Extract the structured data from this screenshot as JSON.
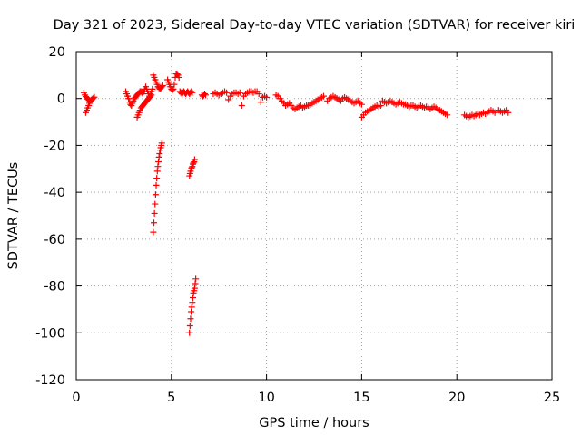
{
  "chart_data": {
    "type": "scatter",
    "title": "Day 321 of 2023, Sidereal Day-to-day VTEC variation (SDTVAR) for receiver kiri",
    "xlabel": "GPS time / hours",
    "ylabel": "SDTVAR / TECUs",
    "xlim": [
      0,
      25
    ],
    "ylim": [
      -120,
      20
    ],
    "xticks": [
      "0",
      "5",
      "10",
      "15",
      "20",
      "25"
    ],
    "yticks": [
      "20",
      "0",
      "-20",
      "-40",
      "-60",
      "-80",
      "-100",
      "-120"
    ],
    "grid": true,
    "legend": "none",
    "marker": "plus",
    "color": "#ff0000",
    "series": [
      {
        "x": [
          0.4,
          0.45,
          0.5,
          0.55,
          0.6,
          0.65,
          0.7,
          0.75,
          0.8,
          0.85,
          0.9,
          0.95,
          0.5,
          0.55,
          0.6,
          0.65,
          0.7,
          2.6,
          2.65,
          2.7,
          2.75,
          2.8,
          2.85,
          2.9,
          2.95,
          3.0,
          3.05,
          3.1,
          3.15,
          3.2,
          3.25,
          3.3,
          3.35,
          3.4,
          3.45,
          3.5,
          3.55,
          3.6,
          3.65,
          3.7,
          3.75,
          3.8,
          3.85,
          3.9,
          3.95,
          4.0,
          3.2,
          3.25,
          3.3,
          3.35,
          3.4,
          3.45,
          3.5,
          3.55,
          3.6,
          3.65,
          3.7,
          3.75,
          3.8,
          3.85,
          3.9,
          3.95,
          4.05,
          4.1,
          4.15,
          4.2,
          4.25,
          4.3,
          4.35,
          4.4,
          4.45,
          4.5,
          4.55,
          4.05,
          4.08,
          4.11,
          4.14,
          4.17,
          4.2,
          4.23,
          4.26,
          4.29,
          4.32,
          4.35,
          4.38,
          4.41,
          4.44,
          4.47,
          4.5,
          4.8,
          4.85,
          4.9,
          4.95,
          5.0,
          5.05,
          5.1,
          5.15,
          5.2,
          5.25,
          5.3,
          5.35,
          5.4,
          5.45,
          5.5,
          5.55,
          5.6,
          5.65,
          5.7,
          5.75,
          5.8,
          5.85,
          5.9,
          5.95,
          6.0,
          6.05,
          6.1,
          5.95,
          5.98,
          6.01,
          6.04,
          6.07,
          6.1,
          6.13,
          6.16,
          6.19,
          6.22,
          5.95,
          5.98,
          6.01,
          6.04,
          6.07,
          6.1,
          6.13,
          6.16,
          6.19,
          6.22,
          6.25,
          6.28,
          6.6,
          6.65,
          6.7,
          6.75,
          6.8,
          7.2,
          7.3,
          7.4,
          7.5,
          7.6,
          7.7,
          7.8,
          7.9,
          8.0,
          8.1,
          8.2,
          8.3,
          8.4,
          8.5,
          8.6,
          8.7,
          8.8,
          8.9,
          9.0,
          9.1,
          9.2,
          9.3,
          9.4,
          9.5,
          9.6,
          9.7,
          9.8,
          9.9,
          10.0,
          10.5,
          10.6,
          10.7,
          10.8,
          10.9,
          11.0,
          11.1,
          11.2,
          11.3,
          11.4,
          11.5,
          11.6,
          11.7,
          11.8,
          11.9,
          12.0,
          12.1,
          12.2,
          12.3,
          12.4,
          12.5,
          12.6,
          12.7,
          12.8,
          12.9,
          13.0,
          13.2,
          13.3,
          13.4,
          13.5,
          13.6,
          13.7,
          13.8,
          13.9,
          14.0,
          14.1,
          14.2,
          14.3,
          14.4,
          14.5,
          14.6,
          14.7,
          14.8,
          14.9,
          15.0,
          15.0,
          15.1,
          15.2,
          15.3,
          15.4,
          15.5,
          15.6,
          15.7,
          15.8,
          15.9,
          16.0,
          16.1,
          16.2,
          16.3,
          16.4,
          16.5,
          16.6,
          16.7,
          16.8,
          16.9,
          17.0,
          17.1,
          17.2,
          17.3,
          17.4,
          17.5,
          17.6,
          17.7,
          17.8,
          17.9,
          18.0,
          18.1,
          18.2,
          18.3,
          18.4,
          18.5,
          18.6,
          18.7,
          18.8,
          18.9,
          19.0,
          19.1,
          19.2,
          19.3,
          19.4,
          19.5,
          20.4,
          20.5,
          20.6,
          20.7,
          20.8,
          20.9,
          21.0,
          21.1,
          21.2,
          21.3,
          21.4,
          21.5,
          21.6,
          21.7,
          21.8,
          21.9,
          22.0,
          22.2,
          22.3,
          22.4,
          22.5,
          22.6,
          22.7
        ],
        "y": [
          2.5,
          1.5,
          0.8,
          0.3,
          -0.2,
          -0.5,
          -0.8,
          -1.0,
          -0.6,
          -0.2,
          0.2,
          0.6,
          -6.0,
          -5.0,
          -4.0,
          -3.0,
          -2.0,
          3.0,
          2.0,
          1.0,
          0.0,
          -1.5,
          -2.5,
          -3.0,
          -2.0,
          -1.0,
          0.0,
          0.5,
          1.0,
          1.5,
          2.0,
          2.5,
          3.0,
          3.0,
          2.5,
          2.0,
          3.0,
          4.0,
          5.0,
          4.0,
          3.0,
          2.0,
          1.0,
          2.0,
          3.0,
          4.0,
          -8.0,
          -7.0,
          -6.0,
          -5.0,
          -4.0,
          -3.5,
          -3.0,
          -2.5,
          -2.0,
          -1.5,
          -1.0,
          -0.5,
          0.0,
          0.5,
          1.0,
          1.5,
          10.0,
          9.0,
          8.0,
          7.0,
          6.0,
          5.0,
          4.5,
          4.0,
          4.5,
          5.0,
          5.5,
          -57.0,
          -53.0,
          -49.0,
          -45.0,
          -41.0,
          -37.0,
          -34.0,
          -31.0,
          -29.0,
          -27.0,
          -25.0,
          -23.5,
          -22.0,
          -21.0,
          -20.0,
          -19.0,
          8.0,
          7.0,
          6.0,
          5.0,
          4.0,
          3.5,
          4.0,
          6.0,
          9.0,
          10.5,
          10.5,
          10.0,
          9.0,
          3.0,
          2.5,
          2.0,
          2.5,
          3.0,
          2.5,
          2.0,
          2.5,
          3.0,
          2.5,
          2.0,
          2.5,
          3.0,
          2.5,
          -33.0,
          -32.0,
          -31.0,
          -30.0,
          -29.5,
          -29.0,
          -28.0,
          -27.5,
          -27.0,
          -26.0,
          -100.0,
          -97.0,
          -94.0,
          -91.0,
          -89.0,
          -87.0,
          -85.0,
          -83.0,
          -82.0,
          -81.0,
          -79.0,
          -77.0,
          1.5,
          1.0,
          1.5,
          2.0,
          1.5,
          2.0,
          2.5,
          2.0,
          1.5,
          2.0,
          2.5,
          3.0,
          2.5,
          -0.5,
          1.0,
          2.0,
          2.5,
          2.5,
          2.0,
          2.5,
          -3.0,
          1.0,
          2.0,
          2.5,
          3.0,
          3.0,
          2.5,
          3.0,
          3.0,
          2.0,
          -1.5,
          0.5,
          1.0,
          0.5,
          1.5,
          1.0,
          0.0,
          -1.0,
          -2.0,
          -3.0,
          -2.5,
          -2.0,
          -3.0,
          -4.0,
          -4.5,
          -4.0,
          -3.5,
          -3.0,
          -4.0,
          -3.5,
          -3.0,
          -3.0,
          -2.5,
          -2.0,
          -1.5,
          -1.0,
          -0.5,
          0.0,
          0.5,
          1.0,
          -1.0,
          0.0,
          0.5,
          1.0,
          0.5,
          0.0,
          -0.5,
          -1.0,
          0.0,
          0.5,
          0.0,
          -0.5,
          -1.0,
          -1.5,
          -2.0,
          -1.5,
          -1.0,
          -2.0,
          -2.5,
          -8.0,
          -7.0,
          -6.0,
          -5.5,
          -5.0,
          -4.5,
          -4.0,
          -3.5,
          -3.0,
          -3.5,
          -3.0,
          -1.0,
          -1.5,
          -2.0,
          -1.5,
          -1.0,
          -1.5,
          -2.0,
          -2.5,
          -2.0,
          -1.5,
          -2.0,
          -2.5,
          -2.5,
          -3.0,
          -3.5,
          -3.0,
          -3.0,
          -3.5,
          -4.0,
          -3.5,
          -3.0,
          -3.5,
          -4.0,
          -3.5,
          -4.0,
          -4.5,
          -4.0,
          -3.5,
          -4.0,
          -4.5,
          -5.0,
          -5.5,
          -6.0,
          -6.5,
          -7.0,
          -7.0,
          -7.5,
          -8.0,
          -7.5,
          -7.0,
          -7.5,
          -7.0,
          -6.5,
          -7.0,
          -6.5,
          -6.0,
          -6.5,
          -6.0,
          -5.5,
          -5.0,
          -5.5,
          -6.0,
          -5.0,
          -5.5,
          -6.0,
          -5.5,
          -5.0,
          -6.0
        ]
      }
    ]
  }
}
